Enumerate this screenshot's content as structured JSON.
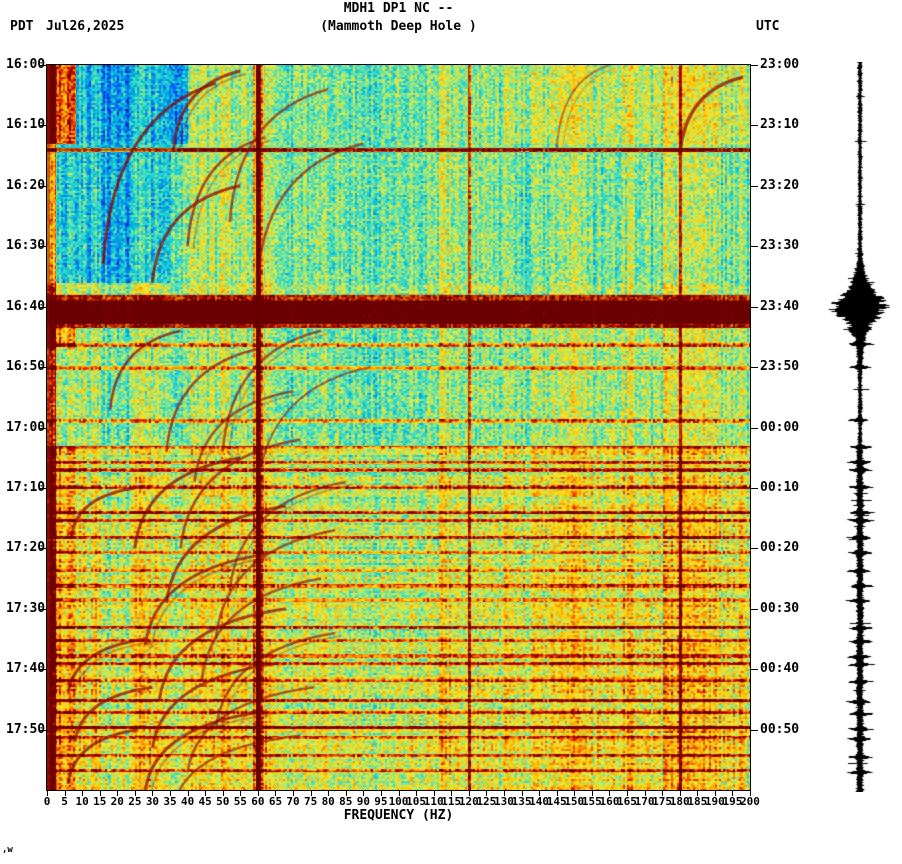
{
  "header": {
    "title_line1": "MDH1 DP1 NC --",
    "title_line2": "(Mammoth Deep Hole )",
    "left_zone": "PDT",
    "date": "Jul26,2025",
    "right_zone": "UTC"
  },
  "footer": {
    "mark": ",w"
  },
  "chart_data": {
    "type": "heatmap",
    "title": "MDH1 DP1 NC -- (Mammoth Deep Hole )",
    "station": "MDH1 DP1 NC",
    "station_name": "Mammoth Deep Hole",
    "date": "Jul26,2025",
    "xlabel": "FREQUENCY (HZ)",
    "x_range_hz": [
      0,
      200
    ],
    "x_tick_step_hz": 5,
    "x_ticks": [
      "0",
      "5",
      "10",
      "15",
      "20",
      "25",
      "30",
      "35",
      "40",
      "45",
      "50",
      "55",
      "60",
      "65",
      "70",
      "75",
      "80",
      "85",
      "90",
      "95",
      "100",
      "105",
      "110",
      "115",
      "120",
      "125",
      "130",
      "135",
      "140",
      "145",
      "150",
      "155",
      "160",
      "165",
      "170",
      "175",
      "180",
      "185",
      "190",
      "195",
      "200"
    ],
    "duration_minutes": 120,
    "left_time_axis": {
      "zone": "PDT",
      "ticks": [
        "16:00",
        "16:10",
        "16:20",
        "16:30",
        "16:40",
        "16:50",
        "17:00",
        "17:10",
        "17:20",
        "17:30",
        "17:40",
        "17:50"
      ]
    },
    "right_time_axis": {
      "zone": "UTC",
      "ticks": [
        "23:00",
        "23:10",
        "23:20",
        "23:30",
        "23:40",
        "23:50",
        "00:00",
        "00:10",
        "00:20",
        "00:30",
        "00:40",
        "00:50"
      ]
    },
    "palette": [
      [
        0,
        "#000082"
      ],
      [
        0.15,
        "#0048ff"
      ],
      [
        0.3,
        "#00b9dc"
      ],
      [
        0.42,
        "#3fe0c8"
      ],
      [
        0.52,
        "#a0e878"
      ],
      [
        0.6,
        "#f0e838"
      ],
      [
        0.7,
        "#ffc800"
      ],
      [
        0.78,
        "#ff8c00"
      ],
      [
        0.86,
        "#e63200"
      ],
      [
        0.93,
        "#b40000"
      ],
      [
        1,
        "#6e0000"
      ]
    ],
    "features": {
      "description": "Spectrogram: turquoise/yellow background noise with vertical striping; blue quiet zone upper-left (0-40 Hz, 16:00-16:35); strong low-frequency energy at far-left edge; persistent power-line noise at 60, 120, 180 Hz; intense broadband event band at ~16:38-16:43 PDT; repeated descending harmonic glide arcs (20-95 Hz); many red horizontal burst lines after 16:45; overall warmer (yellow/red) after 17:05.",
      "powerline_hz": [
        60,
        120,
        180
      ],
      "broadband_event": {
        "start_min": 38,
        "end_min": 43.5,
        "label": "broadband event 16:38-16:43 PDT"
      },
      "dark_line_min": 14,
      "horizontal_lines": [
        [
          46.3,
          0.34
        ],
        [
          50.1,
          0.3
        ],
        [
          58.8,
          0.3
        ],
        [
          63.2,
          0.32
        ],
        [
          65.7,
          0.3
        ],
        [
          67.0,
          0.42
        ],
        [
          69.8,
          0.36
        ],
        [
          74.0,
          0.44
        ],
        [
          75.3,
          0.3
        ],
        [
          78.1,
          0.34
        ],
        [
          80.6,
          0.32
        ],
        [
          83.6,
          0.3
        ],
        [
          86.1,
          0.34
        ],
        [
          88.5,
          0.3
        ],
        [
          93.0,
          0.42
        ],
        [
          95.2,
          0.32
        ],
        [
          97.7,
          0.3
        ],
        [
          99.0,
          0.34
        ],
        [
          101.8,
          0.32
        ],
        [
          105.1,
          0.36
        ],
        [
          107.1,
          0.32
        ],
        [
          109.6,
          0.42
        ],
        [
          111.2,
          0.3
        ],
        [
          114.2,
          0.36
        ],
        [
          116.7,
          0.34
        ]
      ],
      "arcs": [
        [
          1,
          13,
          55,
          36,
          3,
          0.7
        ],
        [
          3,
          30,
          48,
          16,
          3,
          0.75
        ],
        [
          4,
          22,
          80,
          52,
          2.5,
          0.6
        ],
        [
          12,
          18,
          62,
          40,
          2.5,
          0.65
        ],
        [
          13,
          22,
          90,
          60,
          2.5,
          0.6
        ],
        [
          20,
          16,
          55,
          30,
          3,
          0.7
        ],
        [
          0,
          14,
          160,
          145,
          2,
          0.45
        ],
        [
          2,
          13,
          198,
          180,
          3.5,
          0.7
        ],
        [
          44,
          13,
          38,
          18,
          2.5,
          0.7
        ],
        [
          44,
          20,
          78,
          50,
          2.5,
          0.6
        ],
        [
          47,
          17,
          60,
          34,
          2.5,
          0.65
        ],
        [
          50,
          20,
          92,
          60,
          2,
          0.55
        ],
        [
          54,
          15,
          70,
          42,
          2.5,
          0.6
        ],
        [
          62,
          18,
          72,
          38,
          2.5,
          0.65
        ],
        [
          65,
          15,
          55,
          25,
          3,
          0.7
        ],
        [
          69,
          18,
          85,
          52,
          2.5,
          0.6
        ],
        [
          73,
          16,
          68,
          34,
          3,
          0.7
        ],
        [
          77,
          18,
          82,
          48,
          2.5,
          0.6
        ],
        [
          81,
          15,
          62,
          28,
          3,
          0.7
        ],
        [
          85,
          17,
          78,
          44,
          2.5,
          0.6
        ],
        [
          90,
          15,
          68,
          32,
          3,
          0.68
        ],
        [
          94,
          16,
          82,
          48,
          2.5,
          0.6
        ],
        [
          99,
          14,
          66,
          30,
          3,
          0.7
        ],
        [
          103,
          14,
          76,
          40,
          2.5,
          0.6
        ],
        [
          107,
          13,
          62,
          28,
          3,
          0.7
        ],
        [
          111,
          12,
          72,
          36,
          2.5,
          0.6
        ],
        [
          70,
          8,
          25,
          7,
          3,
          0.7
        ],
        [
          95,
          9,
          28,
          6,
          3,
          0.7
        ],
        [
          103,
          9,
          30,
          8,
          3,
          0.7
        ],
        [
          110,
          9,
          26,
          6,
          3,
          0.7
        ]
      ]
    },
    "seismogram": {
      "description": "Vertical black waveform trace at right; quiet at top, large burst ~16:38-16:45, frequent spikes after 17:00",
      "burst_center_min": 40.3,
      "burst_sigma_min": 2.0,
      "burst_amp": 23
    }
  }
}
